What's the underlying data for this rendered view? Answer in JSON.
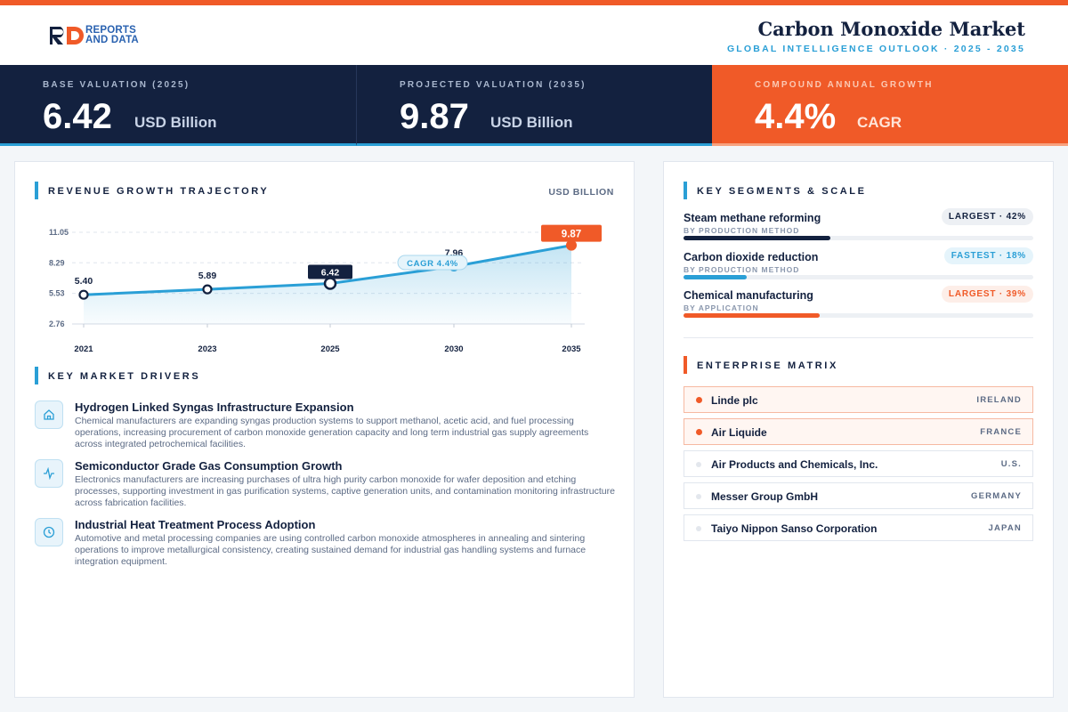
{
  "header": {
    "logo_line1": "REPORTS",
    "logo_line2": "AND DATA",
    "title": "Carbon Monoxide Market",
    "subtitle": "GLOBAL INTELLIGENCE OUTLOOK  ·  2025 - 2035"
  },
  "kpis": [
    {
      "label": "BASE VALUATION (2025)",
      "value": "6.42",
      "unit": "USD Billion"
    },
    {
      "label": "PROJECTED VALUATION (2035)",
      "value": "9.87",
      "unit": "USD Billion"
    },
    {
      "label": "COMPOUND ANNUAL GROWTH",
      "value": "4.4%",
      "unit": "CAGR"
    }
  ],
  "trajectory": {
    "title": "REVENUE GROWTH TRAJECTORY",
    "unit_tag": "USD BILLION",
    "cagr_label": "CAGR 4.4%"
  },
  "chart_data": {
    "type": "area",
    "categories": [
      "2021",
      "2023",
      "2025",
      "2030",
      "2035"
    ],
    "values": [
      5.4,
      5.89,
      6.42,
      7.96,
      9.87
    ],
    "value_labels": [
      "5.40",
      "5.89",
      "6.42",
      "7.96",
      "9.87"
    ],
    "yticks": [
      "11.05",
      "8.29",
      "5.53",
      "2.76"
    ],
    "ylim": [
      2.76,
      11.05
    ],
    "grid": true,
    "colors": {
      "line": "#2a9fd6",
      "highlight": "#13213f",
      "end": "#f05a28"
    }
  },
  "drivers": {
    "title": "KEY MARKET DRIVERS",
    "items": [
      {
        "icon": "home-icon",
        "title": "Hydrogen Linked Syngas Infrastructure Expansion",
        "desc": "Chemical manufacturers are expanding syngas production systems to support methanol, acetic acid, and fuel processing operations, increasing procurement of carbon monoxide generation capacity and long term industrial gas supply agreements across integrated petrochemical facilities."
      },
      {
        "icon": "pulse-icon",
        "title": "Semiconductor Grade Gas Consumption Growth",
        "desc": "Electronics manufacturers are increasing purchases of ultra high purity carbon monoxide for wafer deposition and etching processes, supporting investment in gas purification systems, captive generation units, and contamination monitoring infrastructure across fabrication facilities."
      },
      {
        "icon": "clock-icon",
        "title": "Industrial Heat Treatment Process Adoption",
        "desc": "Automotive and metal processing companies are using controlled carbon monoxide atmospheres in annealing and sintering operations to improve metallurgical consistency, creating sustained demand for industrial gas handling systems and furnace integration equipment."
      }
    ]
  },
  "segments": {
    "title": "KEY SEGMENTS & SCALE",
    "items": [
      {
        "name": "Steam methane reforming",
        "category": "BY PRODUCTION METHOD",
        "badge": "LARGEST · 42%",
        "share": 0.42,
        "color": "#13213f",
        "badge_bg": "#edf0f4",
        "badge_color": "#13213f"
      },
      {
        "name": "Carbon dioxide reduction",
        "category": "BY PRODUCTION METHOD",
        "badge": "FASTEST · 18%",
        "share": 0.18,
        "color": "#2a9fd6",
        "badge_bg": "#e5f4fb",
        "badge_color": "#2a9fd6"
      },
      {
        "name": "Chemical manufacturing",
        "category": "BY APPLICATION",
        "badge": "LARGEST · 39%",
        "share": 0.39,
        "color": "#f05a28",
        "badge_bg": "#fdeee8",
        "badge_color": "#f05a28"
      }
    ]
  },
  "enterprise": {
    "title": "ENTERPRISE MATRIX",
    "items": [
      {
        "name": "Linde plc",
        "country": "IRELAND",
        "highlight": true
      },
      {
        "name": "Air Liquide",
        "country": "FRANCE",
        "highlight": true
      },
      {
        "name": "Air Products and Chemicals, Inc.",
        "country": "U.S.",
        "highlight": false
      },
      {
        "name": "Messer Group GmbH",
        "country": "GERMANY",
        "highlight": false
      },
      {
        "name": "Taiyo Nippon Sanso Corporation",
        "country": "JAPAN",
        "highlight": false
      }
    ]
  }
}
